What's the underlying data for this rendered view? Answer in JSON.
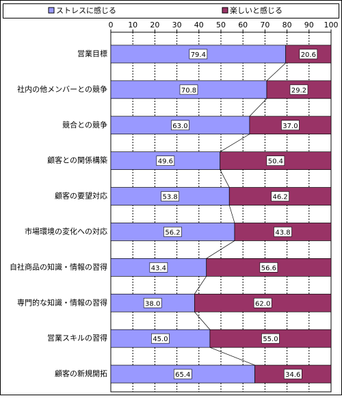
{
  "chart_data": {
    "type": "stacked-bar-horizontal",
    "categories": [
      "営業目標",
      "社内の他メンバーとの競争",
      "競合との競争",
      "顧客との関係構築",
      "顧客の要望対応",
      "市場環境の変化への対応",
      "自社商品の知識・情報の習得",
      "専門的な知識・情報の習得",
      "営業スキルの習得",
      "顧客の新規開拓"
    ],
    "series": [
      {
        "name": "ストレスに感じる",
        "color": "#9999ff",
        "values": [
          79.4,
          70.8,
          63.0,
          49.6,
          53.8,
          56.2,
          43.4,
          38.0,
          45.0,
          65.4
        ],
        "value_labels": [
          "79.4",
          "70.8",
          "63.0",
          "49.6",
          "53.8",
          "56.2",
          "43.4",
          "38.0",
          "45.0",
          "65.4"
        ]
      },
      {
        "name": "楽しいと感じる",
        "color": "#993366",
        "values": [
          20.6,
          29.2,
          37.0,
          50.4,
          46.2,
          43.8,
          56.6,
          62.0,
          55.0,
          34.6
        ],
        "value_labels": [
          "20.6",
          "29.2",
          "37.0",
          "50.4",
          "46.2",
          "43.8",
          "56.6",
          "62.0",
          "55.0",
          "34.6"
        ]
      }
    ],
    "xlim": [
      0,
      100
    ],
    "xticks": [
      0,
      10,
      20,
      30,
      40,
      50,
      60,
      70,
      80,
      90,
      100
    ],
    "grid": true
  }
}
